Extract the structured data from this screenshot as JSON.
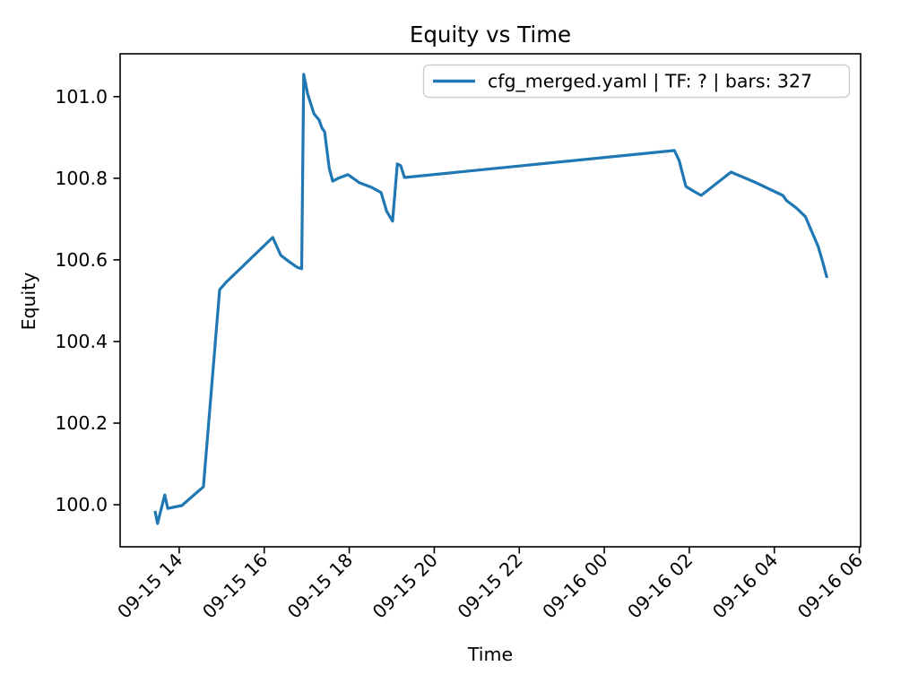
{
  "chart_data": {
    "type": "line",
    "title": "Equity vs Time",
    "xlabel": "Time",
    "ylabel": "Equity",
    "legend_position": "upper right",
    "grid": false,
    "line_color": "#1f77b4",
    "x_axis_unit": "hours since 09-15 00:00",
    "xlim": [
      12.61,
      30.03
    ],
    "ylim": [
      99.897,
      101.105
    ],
    "x_ticks": [
      {
        "x": 14,
        "label": "09-15 14"
      },
      {
        "x": 16,
        "label": "09-15 16"
      },
      {
        "x": 18,
        "label": "09-15 18"
      },
      {
        "x": 20,
        "label": "09-15 20"
      },
      {
        "x": 22,
        "label": "09-15 22"
      },
      {
        "x": 24,
        "label": "09-16 00"
      },
      {
        "x": 26,
        "label": "09-16 02"
      },
      {
        "x": 28,
        "label": "09-16 04"
      },
      {
        "x": 30,
        "label": "09-16 06"
      }
    ],
    "y_ticks": [
      {
        "y": 100.0,
        "label": "100.0"
      },
      {
        "y": 100.2,
        "label": "100.2"
      },
      {
        "y": 100.4,
        "label": "100.4"
      },
      {
        "y": 100.6,
        "label": "100.6"
      },
      {
        "y": 100.8,
        "label": "100.8"
      },
      {
        "y": 101.0,
        "label": "101.0"
      }
    ],
    "series": [
      {
        "name": "cfg_merged.yaml | TF: ? | bars: 327",
        "color": "#1f77b4",
        "points": [
          [
            13.43,
            99.985
          ],
          [
            13.49,
            99.954
          ],
          [
            13.66,
            100.024
          ],
          [
            13.73,
            99.991
          ],
          [
            14.06,
            99.998
          ],
          [
            14.57,
            100.044
          ],
          [
            14.95,
            100.527
          ],
          [
            15.1,
            100.545
          ],
          [
            16.2,
            100.655
          ],
          [
            16.39,
            100.611
          ],
          [
            16.58,
            100.596
          ],
          [
            16.77,
            100.582
          ],
          [
            16.88,
            100.578
          ],
          [
            16.93,
            101.055
          ],
          [
            17.02,
            101.007
          ],
          [
            17.17,
            100.958
          ],
          [
            17.29,
            100.943
          ],
          [
            17.36,
            100.923
          ],
          [
            17.42,
            100.914
          ],
          [
            17.53,
            100.824
          ],
          [
            17.61,
            100.793
          ],
          [
            17.74,
            100.8
          ],
          [
            17.97,
            100.809
          ],
          [
            18.24,
            100.789
          ],
          [
            18.52,
            100.778
          ],
          [
            18.75,
            100.765
          ],
          [
            18.88,
            100.719
          ],
          [
            19.02,
            100.695
          ],
          [
            19.13,
            100.835
          ],
          [
            19.21,
            100.831
          ],
          [
            19.3,
            100.802
          ],
          [
            25.65,
            100.868
          ],
          [
            25.76,
            100.844
          ],
          [
            25.92,
            100.78
          ],
          [
            26.09,
            100.769
          ],
          [
            26.28,
            100.758
          ],
          [
            26.98,
            100.815
          ],
          [
            27.53,
            100.791
          ],
          [
            28.2,
            100.758
          ],
          [
            28.29,
            100.745
          ],
          [
            28.52,
            100.727
          ],
          [
            28.73,
            100.706
          ],
          [
            29.03,
            100.633
          ],
          [
            29.13,
            100.598
          ],
          [
            29.24,
            100.556
          ]
        ]
      }
    ]
  }
}
